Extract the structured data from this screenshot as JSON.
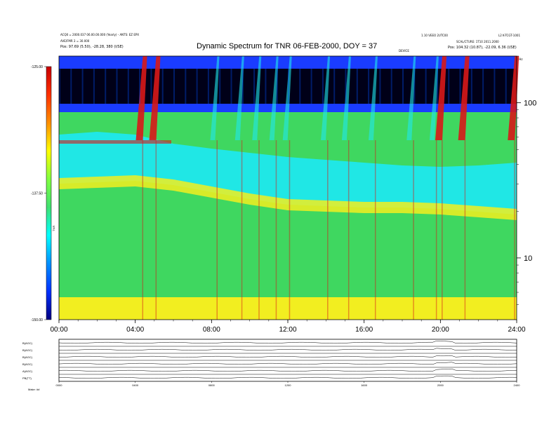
{
  "header": {
    "left_line1": "ACQ0 = 2000.037 06.00.00.000 (Yearly) - ANTS: EZ EPX",
    "left_line2": "AVE/FMR 3 = 30.000",
    "left_line3": "Pos:    97.69 (5.50), -28.28, 380 (I/SE)",
    "right_line1": "1.10 VEEO 2UTC00",
    "right_line2": "SCAL/CTURE: 1T10 2011.2000",
    "right_line3": "Pos:    104.32 (10.87), -22.09, 6.36 (I/SE)",
    "right_corner": "L2 K-TCGT-1001",
    "mid_small": "DEVICE",
    "khz_label": "kHz"
  },
  "chart_data": {
    "type": "heatmap",
    "title": "Dynamic Spectrum for TNR 06-FEB-2000, DOY = 37",
    "x_tick_labels": [
      "00:00",
      "04:00",
      "08:00",
      "12:00",
      "16:00",
      "20:00",
      "24:00"
    ],
    "x_range_hours": [
      0,
      24
    ],
    "y_scale": "log",
    "y_range_khz": [
      4,
      200
    ],
    "y_tick_labels": [
      "100",
      "10"
    ],
    "y_tick_values_khz": [
      100,
      10
    ],
    "colorbar": {
      "tick_labels": [
        "-125.00",
        "-137.50",
        "-150.00"
      ],
      "tick_values": [
        -125,
        -137.5,
        -150
      ],
      "label": "TNR",
      "colors": [
        "#c80000",
        "#ff3000",
        "#ff9000",
        "#ffff00",
        "#80ff40",
        "#40e070",
        "#00ffff",
        "#0090ff",
        "#0030ff",
        "#000080"
      ]
    },
    "spectrum_colors": {
      "background_green": "#3fd760",
      "yellow": "#f2ee20",
      "cyan": "#1fe8ec",
      "dark": "#000018",
      "blue": "#1a3cff",
      "red": "#d81818"
    },
    "bursts_hours": [
      4.4,
      5.1,
      8.3,
      9.6,
      10.5,
      11.4,
      12.1,
      14.1,
      15.2,
      16.6,
      18.6,
      19.8,
      20.1,
      21.3,
      23.9
    ],
    "bottom_panel": {
      "row_labels": [
        "B(AGC)",
        "B(AGC)",
        "B(AGC)",
        "B(AGC)",
        "A(AGC)",
        "PB(TT)"
      ],
      "x_tick_labels": [
        "0000",
        "0400",
        "0800",
        "1200",
        "1600",
        "2000",
        "2400"
      ],
      "footer_left": "Make:   ##"
    }
  }
}
